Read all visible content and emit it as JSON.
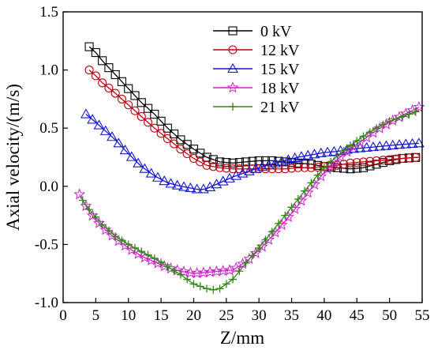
{
  "chart_data": {
    "type": "line",
    "title": "",
    "xlabel": "Z/mm",
    "ylabel": "Axial velocity/(m/s)",
    "xlim": [
      0,
      55
    ],
    "ylim": [
      -1.0,
      1.5
    ],
    "xticks": [
      0,
      5,
      10,
      15,
      20,
      25,
      30,
      35,
      40,
      45,
      50,
      55
    ],
    "yticks": [
      -1.0,
      -0.5,
      0.0,
      0.5,
      1.0,
      1.5
    ],
    "xtick_labels": [
      "0",
      "5",
      "10",
      "15",
      "20",
      "25",
      "30",
      "35",
      "40",
      "45",
      "50",
      "55"
    ],
    "ytick_labels": [
      "-1.0",
      "-0.5",
      "0.0",
      "0.5",
      "1.0",
      "1.5"
    ],
    "grid": false,
    "legend_position": "top-right",
    "series": [
      {
        "name": "0 kV",
        "color": "#000000",
        "marker": "square",
        "x": [
          4,
          5,
          6,
          8,
          10,
          12,
          14,
          16,
          18,
          20,
          22,
          24,
          26,
          28,
          30,
          32,
          34,
          36,
          38,
          40,
          42,
          44,
          46,
          48,
          50,
          52,
          54.5
        ],
        "y": [
          1.2,
          1.15,
          1.08,
          0.96,
          0.84,
          0.72,
          0.62,
          0.5,
          0.4,
          0.32,
          0.25,
          0.21,
          0.2,
          0.21,
          0.22,
          0.22,
          0.21,
          0.2,
          0.19,
          0.17,
          0.16,
          0.15,
          0.16,
          0.19,
          0.22,
          0.24,
          0.25
        ]
      },
      {
        "name": "12 kV",
        "color": "#c0000e",
        "marker": "circle",
        "x": [
          4,
          5,
          6,
          8,
          10,
          12,
          14,
          16,
          18,
          20,
          22,
          24,
          26,
          28,
          30,
          32,
          34,
          36,
          38,
          40,
          42,
          44,
          46,
          48,
          50,
          52,
          54.5
        ],
        "y": [
          1.0,
          0.95,
          0.89,
          0.8,
          0.7,
          0.6,
          0.5,
          0.41,
          0.32,
          0.24,
          0.18,
          0.16,
          0.15,
          0.15,
          0.15,
          0.15,
          0.15,
          0.16,
          0.16,
          0.17,
          0.18,
          0.2,
          0.21,
          0.22,
          0.23,
          0.24,
          0.25
        ]
      },
      {
        "name": "15 kV",
        "color": "#1414d2",
        "marker": "triangle",
        "x": [
          3.5,
          5,
          6,
          8,
          10,
          12,
          14,
          16,
          18,
          20,
          21,
          22,
          24,
          26,
          28,
          30,
          32,
          34,
          36,
          38,
          40,
          42,
          44,
          46,
          48,
          50,
          52,
          54.5
        ],
        "y": [
          0.62,
          0.55,
          0.5,
          0.4,
          0.28,
          0.17,
          0.09,
          0.03,
          0.0,
          -0.02,
          -0.03,
          -0.02,
          0.03,
          0.08,
          0.12,
          0.16,
          0.19,
          0.22,
          0.25,
          0.27,
          0.29,
          0.3,
          0.32,
          0.33,
          0.34,
          0.35,
          0.36,
          0.37
        ]
      },
      {
        "name": "18 kV",
        "color": "#cc22cc",
        "marker": "star",
        "x": [
          2.5,
          4,
          6,
          8,
          10,
          12,
          14,
          16,
          18,
          20,
          22,
          24,
          26,
          28,
          30,
          32,
          34,
          36,
          38,
          40,
          42,
          44,
          46,
          48,
          50,
          52,
          54.5
        ],
        "y": [
          -0.07,
          -0.22,
          -0.35,
          -0.45,
          -0.53,
          -0.6,
          -0.65,
          -0.7,
          -0.73,
          -0.75,
          -0.74,
          -0.73,
          -0.72,
          -0.65,
          -0.55,
          -0.43,
          -0.3,
          -0.16,
          -0.02,
          0.12,
          0.23,
          0.32,
          0.4,
          0.48,
          0.55,
          0.61,
          0.68
        ]
      },
      {
        "name": "21 kV",
        "color": "#2e8b12",
        "marker": "plus",
        "x": [
          3,
          4,
          6,
          8,
          10,
          12,
          14,
          16,
          18,
          20,
          22,
          23,
          24,
          26,
          28,
          30,
          32,
          34,
          36,
          38,
          40,
          42,
          44,
          46,
          48,
          50,
          52,
          54.5
        ],
        "y": [
          -0.12,
          -0.2,
          -0.33,
          -0.43,
          -0.5,
          -0.56,
          -0.62,
          -0.69,
          -0.76,
          -0.84,
          -0.88,
          -0.89,
          -0.88,
          -0.8,
          -0.66,
          -0.53,
          -0.39,
          -0.25,
          -0.11,
          0.03,
          0.16,
          0.26,
          0.35,
          0.43,
          0.5,
          0.56,
          0.6,
          0.65
        ]
      }
    ]
  }
}
